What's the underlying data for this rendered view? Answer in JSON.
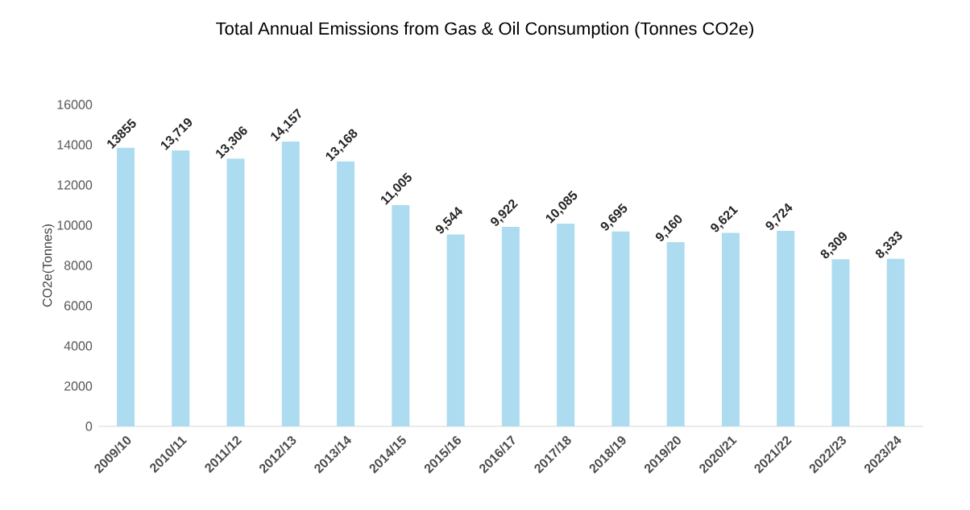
{
  "chart_data": {
    "type": "bar",
    "title": "Total Annual Emissions from Gas & Oil Consumption (Tonnes CO2e)",
    "ylabel": "CO2e(Tonnes)",
    "categories": [
      "2009/10",
      "2010/11",
      "2011/12",
      "2012/13",
      "2013/14",
      "2014/15",
      "2015/16",
      "2016/17",
      "2017/18",
      "2018/19",
      "2019/20",
      "2020/21",
      "2021/22",
      "2022/23",
      "2023/24"
    ],
    "values": [
      13855,
      13719,
      13306,
      14157,
      13168,
      11005,
      9544,
      9922,
      10085,
      9695,
      9160,
      9621,
      9724,
      8309,
      8333
    ],
    "value_labels": [
      "13855",
      "13,719",
      "13,306",
      "14,157",
      "13,168",
      "11,005",
      "9,544",
      "9,922",
      "10,085",
      "9,695",
      "9,160",
      "9,621",
      "9,724",
      "8,309",
      "8,333"
    ],
    "color": "#addcf0",
    "ylim": [
      0,
      16000
    ],
    "yticks": [
      0,
      2000,
      4000,
      6000,
      8000,
      10000,
      12000,
      14000,
      16000
    ],
    "grid": false
  }
}
